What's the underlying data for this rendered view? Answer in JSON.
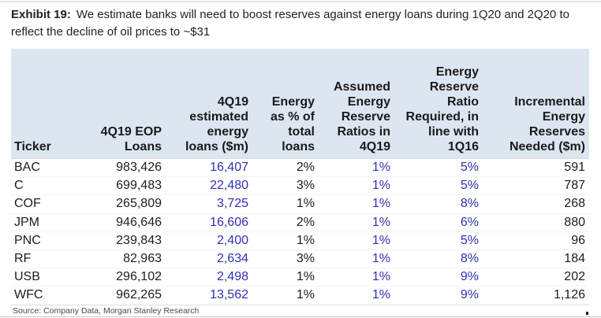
{
  "title": {
    "prefix": "Exhibit 19:",
    "text": "We estimate banks will need to boost reserves against energy loans during 1Q20 and 2Q20 to reflect the decline of oil prices to ~$31"
  },
  "source": "Source: Company Data, Morgan Stanley Research",
  "colors": {
    "header_bg": "#dce6f1",
    "accent_blue": "#2f2fb2"
  },
  "chart_data": {
    "type": "table",
    "title": "Exhibit 19: We estimate banks will need to boost reserves against energy loans during 1Q20 and 2Q20 to reflect the decline of oil prices to ~$31",
    "columns": [
      "Ticker",
      "4Q19 EOP Loans",
      "4Q19 estimated energy loans ($m)",
      "Energy as % of total loans",
      "Assumed Energy Reserve Ratios in 4Q19",
      "Energy Reserve Ratio Required, in line with 1Q16",
      "Incremental Energy Reserves Needed ($m)"
    ],
    "header_lines": [
      [
        "Ticker"
      ],
      [
        "4Q19 EOP",
        "Loans"
      ],
      [
        "4Q19",
        "estimated",
        "energy",
        "loans ($m)"
      ],
      [
        "Energy",
        "as % of",
        "total",
        "loans"
      ],
      [
        "Assumed",
        "Energy",
        "Reserve",
        "Ratios in",
        "4Q19"
      ],
      [
        "Energy",
        "Reserve",
        "Ratio",
        "Required, in",
        "line with",
        "1Q16"
      ],
      [
        "Incremental",
        "Energy",
        "Reserves",
        "Needed ($m)"
      ]
    ],
    "blue_columns": [
      2,
      4,
      5
    ],
    "rows": [
      [
        "BAC",
        "983,426",
        "16,407",
        "2%",
        "1%",
        "5%",
        "591"
      ],
      [
        "C",
        "699,483",
        "22,480",
        "3%",
        "1%",
        "5%",
        "787"
      ],
      [
        "COF",
        "265,809",
        "3,725",
        "1%",
        "1%",
        "8%",
        "268"
      ],
      [
        "JPM",
        "946,646",
        "16,606",
        "2%",
        "1%",
        "6%",
        "880"
      ],
      [
        "PNC",
        "239,843",
        "2,400",
        "1%",
        "1%",
        "5%",
        "96"
      ],
      [
        "RF",
        "82,963",
        "2,634",
        "3%",
        "1%",
        "8%",
        "184"
      ],
      [
        "USB",
        "296,102",
        "2,498",
        "1%",
        "1%",
        "9%",
        "202"
      ],
      [
        "WFC",
        "962,265",
        "13,562",
        "1%",
        "1%",
        "9%",
        "1,126"
      ]
    ],
    "source": "Source: Company Data, Morgan Stanley Research",
    "layout": {
      "grid": "off",
      "header_align": "bottom-right",
      "first_column_align": "left"
    }
  }
}
